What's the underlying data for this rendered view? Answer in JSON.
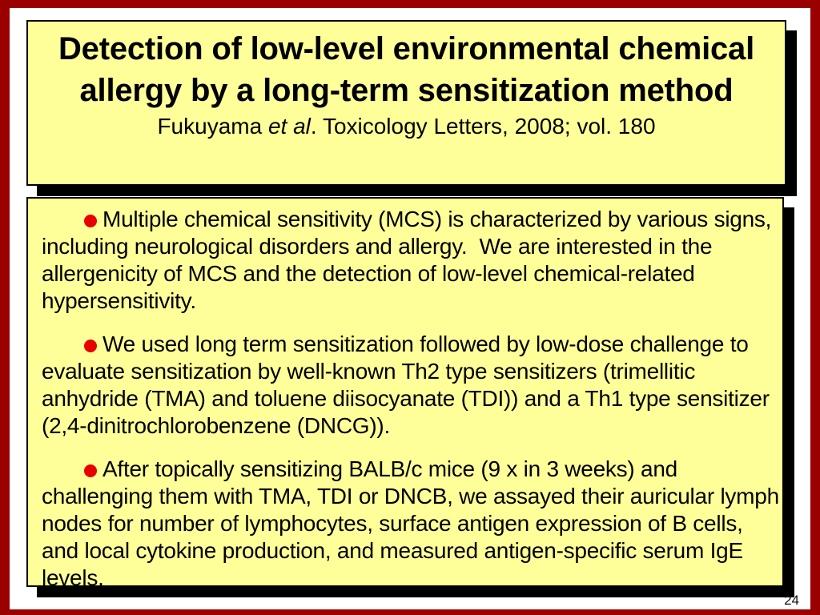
{
  "slide": {
    "title": "Detection of low-level environmental chemical allergy by a long-term sensitization method",
    "citation": {
      "prefix": "Fukuyama ",
      "italic": "et al",
      "rest": ". Toxicology Letters, 2008; vol. 180"
    },
    "bullets": [
      "Multiple chemical sensitivity (MCS) is characterized by various signs, including neurological disorders and allergy.  We are interested in the allergenicity of MCS and the detection of low-level chemical-related hypersensitivity.",
      "We used long term sensitization followed by low-dose challenge to evaluate sensitization by well-known Th2 type sensitizers (trimellitic anhydride (TMA) and toluene diisocyanate (TDI)) and a Th1 type sensitizer (2,4-dinitrochlorobenzene (DNCG)).",
      "After topically sensitizing BALB/c mice (9 x in 3 weeks) and challenging them with TMA, TDI or DNCB, we assayed their auricular lymph nodes for number of lymphocytes, surface antigen expression of B cells, and local cytokine production, and measured antigen-specific serum IgE levels."
    ],
    "page_number": "24",
    "colors": {
      "frame_red": "#9b0000",
      "box_fill_yellow": "#ffff99",
      "box_border": "#000000",
      "shadow": "#000000",
      "bullet_red": "#e80000",
      "text": "#000000",
      "background": "#ffffff"
    }
  }
}
